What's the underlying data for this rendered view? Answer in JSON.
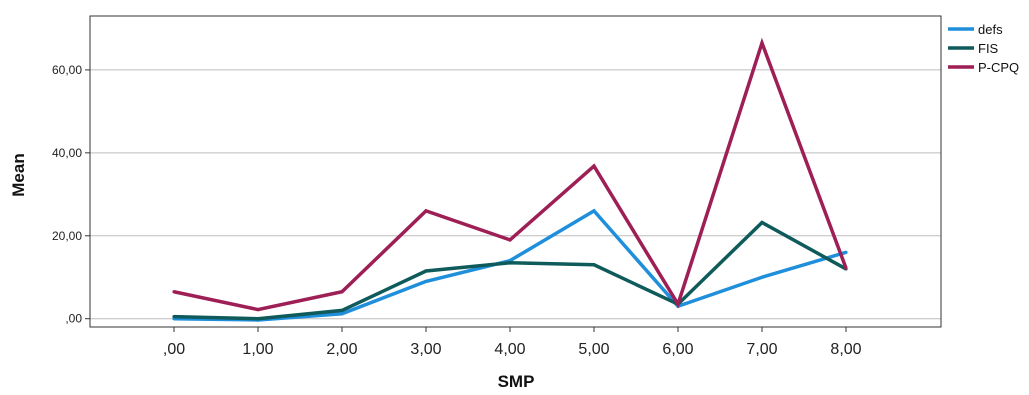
{
  "chart_data": {
    "type": "line",
    "xlabel": "SMP",
    "ylabel": "Mean",
    "categories": [
      ",00",
      "1,00",
      "2,00",
      "3,00",
      "4,00",
      "5,00",
      "6,00",
      "7,00",
      "8,00"
    ],
    "ylim": [
      -2,
      73
    ],
    "yticks": [
      0,
      20,
      40,
      60
    ],
    "ytick_labels": [
      ",00",
      "20,00",
      "40,00",
      "60,00"
    ],
    "grid": "horizontal",
    "legend_position": "top-right",
    "series": [
      {
        "name": "defs",
        "color": "#1f8fdb",
        "values": [
          0.0,
          -0.3,
          1.2,
          9.0,
          14.0,
          26.0,
          3.0,
          10.0,
          16.0
        ]
      },
      {
        "name": "FIS",
        "color": "#0f5a5a",
        "values": [
          0.5,
          0.0,
          2.0,
          11.5,
          13.5,
          13.0,
          3.5,
          23.2,
          12.0
        ]
      },
      {
        "name": "P-CPQ",
        "color": "#9e1f55",
        "values": [
          6.5,
          2.2,
          6.5,
          26.0,
          19.0,
          36.8,
          3.5,
          66.5,
          12.2
        ]
      }
    ]
  }
}
